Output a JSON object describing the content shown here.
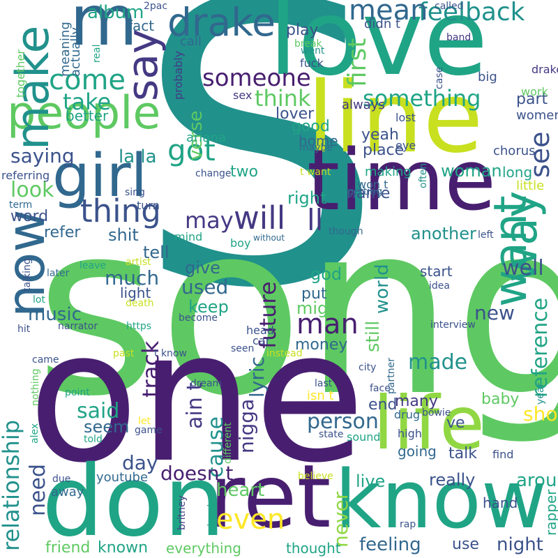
{
  "palette": {
    "purple": "#481f70",
    "indigo": "#443983",
    "slate": "#3b528b",
    "steel": "#31688e",
    "teal": "#287c8e",
    "cyan": "#21918c",
    "sea": "#20a486",
    "emerald": "#35b779",
    "green": "#5ec962",
    "lime": "#90d743",
    "yellowgreen": "#c8e020",
    "yellow": "#fde725"
  },
  "words": [
    "S",
    "song",
    "one",
    "love",
    "line",
    "time",
    "don",
    "know",
    "life",
    "ret",
    "m",
    "people",
    "girl",
    "now",
    "make",
    "drake",
    "say",
    "want",
    "way",
    "will",
    "ll",
    "thing",
    "got",
    "relationship",
    "feelback",
    "mean",
    "come",
    "take",
    "reference",
    "see",
    "someone",
    "think",
    "something",
    "first",
    "lyric",
    "nigga",
    "man",
    "future",
    "track",
    "ain t",
    "cause",
    "doesn t",
    "even",
    "person",
    "world",
    "still",
    "well",
    "new",
    "made",
    "show",
    "saying",
    "look",
    "la la",
    "album",
    "music",
    "much",
    "used",
    "keep",
    "give",
    "tell",
    "may",
    "shit",
    "day",
    "said",
    "seem",
    "need",
    "heart",
    "never",
    "live",
    "really",
    "around",
    "feeling",
    "known",
    "friend",
    "everything",
    "thought",
    "night",
    "use",
    "verse",
    "play",
    "part",
    "lover",
    "women",
    "good",
    "yeah",
    "home",
    "place",
    "woman",
    "long",
    "two",
    "word",
    "refer",
    "right",
    "name",
    "another",
    "god",
    "might",
    "money",
    "put",
    "end",
    "many",
    "baby",
    "ve",
    "talk",
    "going",
    "hand",
    "rapper",
    "youtube",
    "away",
    "start",
    "light",
    "better",
    "fact",
    "call",
    "actually",
    "meaning",
    "together",
    "sex",
    "probably",
    "ariana",
    "eye",
    "chorus",
    "little",
    "always",
    "lost",
    "case",
    "big",
    "band",
    "drake s",
    "called",
    "didn t",
    "break",
    "went",
    "fuck",
    "real",
    "2pac",
    "work",
    "maybe",
    "change",
    "sing",
    "turn",
    "referring",
    "term",
    "t want",
    "making",
    "often",
    "won t",
    "getting",
    "though",
    "left",
    "mind",
    "boy",
    "without",
    "artist",
    "later",
    "leave",
    "talking",
    "lot",
    "death",
    "hit",
    "narrator",
    "https",
    "become",
    "interview",
    "idea",
    "head",
    "car",
    "past",
    "t know",
    "seen",
    "instead",
    "came",
    "dream",
    "nothing",
    "point",
    "alex",
    "told",
    "game",
    "let",
    "isn t",
    "drug",
    "sound",
    "high",
    "state",
    "last",
    "face",
    "partner",
    "different",
    "year",
    "street",
    "britney",
    "city",
    "rap",
    "bowie",
    "believe",
    "due",
    "find",
    "watch v"
  ]
}
